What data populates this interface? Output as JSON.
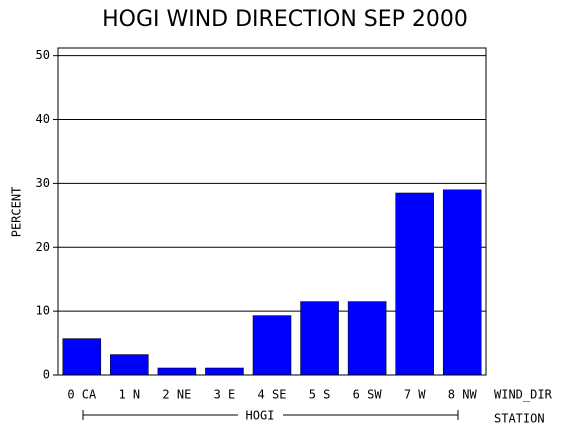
{
  "chart_data": {
    "type": "bar",
    "title": "HOGI WIND DIRECTION SEP 2000",
    "y_label": "PERCENT",
    "x_label": "WIND_DIR",
    "group_label": "STATION",
    "group": "HOGI",
    "categories": [
      "0 CA",
      "1 N",
      "2 NE",
      "3 E",
      "4 SE",
      "5 S",
      "6 SW",
      "7 W",
      "8 NW"
    ],
    "values": [
      5.7,
      3.2,
      1.1,
      1.1,
      9.3,
      11.5,
      11.5,
      28.5,
      29.0
    ],
    "color": "#0000ff",
    "ylim": [
      0,
      51.2
    ],
    "yticks": [
      0,
      10,
      20,
      30,
      40,
      50
    ],
    "grid": true
  }
}
